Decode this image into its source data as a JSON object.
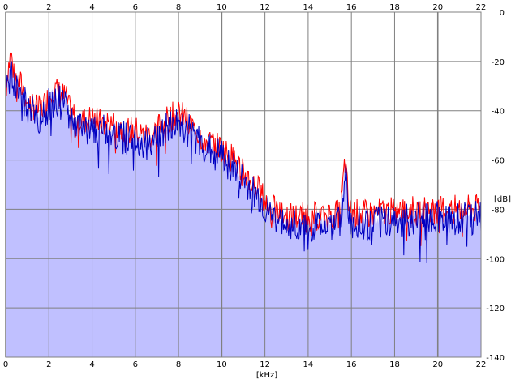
{
  "chart_data": {
    "type": "area",
    "title": "",
    "xlabel": "[kHz]",
    "ylabel": "[dB]",
    "xlim": [
      0,
      22
    ],
    "ylim": [
      -140,
      0
    ],
    "x_ticks": [
      "0",
      "2",
      "4",
      "6",
      "8",
      "10",
      "12",
      "14",
      "16",
      "18",
      "20",
      "22"
    ],
    "y_ticks": [
      "0",
      "-20",
      "-40",
      "-60",
      "-80",
      "-100",
      "-120",
      "-140"
    ],
    "grid": true,
    "legend": "none",
    "colors": {
      "fill": "#c0c0ff",
      "grid": "#808080",
      "series_red": "#ff0000",
      "series_blue": "#0000c0"
    },
    "envelope": {
      "x": [
        0,
        0.1,
        0.25,
        0.4,
        0.6,
        0.8,
        1.0,
        1.3,
        1.6,
        1.9,
        2.2,
        2.5,
        2.8,
        3.0,
        3.3,
        3.6,
        4.0,
        4.4,
        4.8,
        5.2,
        5.6,
        6.0,
        6.4,
        6.8,
        7.2,
        7.6,
        8.0,
        8.3,
        8.6,
        9.0,
        9.4,
        9.8,
        10.2,
        10.6,
        11.0,
        11.4,
        11.8,
        12.0,
        12.5,
        13.0,
        13.5,
        14.0,
        14.5,
        15.0,
        15.5,
        15.7,
        15.9,
        16.5,
        17.0,
        17.5,
        18.0,
        18.5,
        19.0,
        19.5,
        20.0,
        20.5,
        21.0,
        21.5,
        22.0
      ],
      "y": [
        -35,
        -25,
        -19,
        -28,
        -30,
        -33,
        -38,
        -40,
        -42,
        -38,
        -33,
        -35,
        -37,
        -43,
        -45,
        -46,
        -45,
        -47,
        -47,
        -48,
        -50,
        -50,
        -52,
        -52,
        -47,
        -45,
        -43,
        -45,
        -48,
        -52,
        -55,
        -56,
        -59,
        -62,
        -67,
        -71,
        -75,
        -79,
        -83,
        -85,
        -85,
        -85,
        -85,
        -84,
        -84,
        -62,
        -83,
        -84,
        -84,
        -83,
        -83,
        -83,
        -82,
        -82,
        -82,
        -82,
        -82,
        -82,
        -82
      ]
    },
    "series": [
      {
        "color": "red",
        "offset": 2.0,
        "noise": 6,
        "seed": 7
      },
      {
        "color": "blue",
        "offset": -1.5,
        "noise": 7,
        "seed": 19
      }
    ]
  }
}
